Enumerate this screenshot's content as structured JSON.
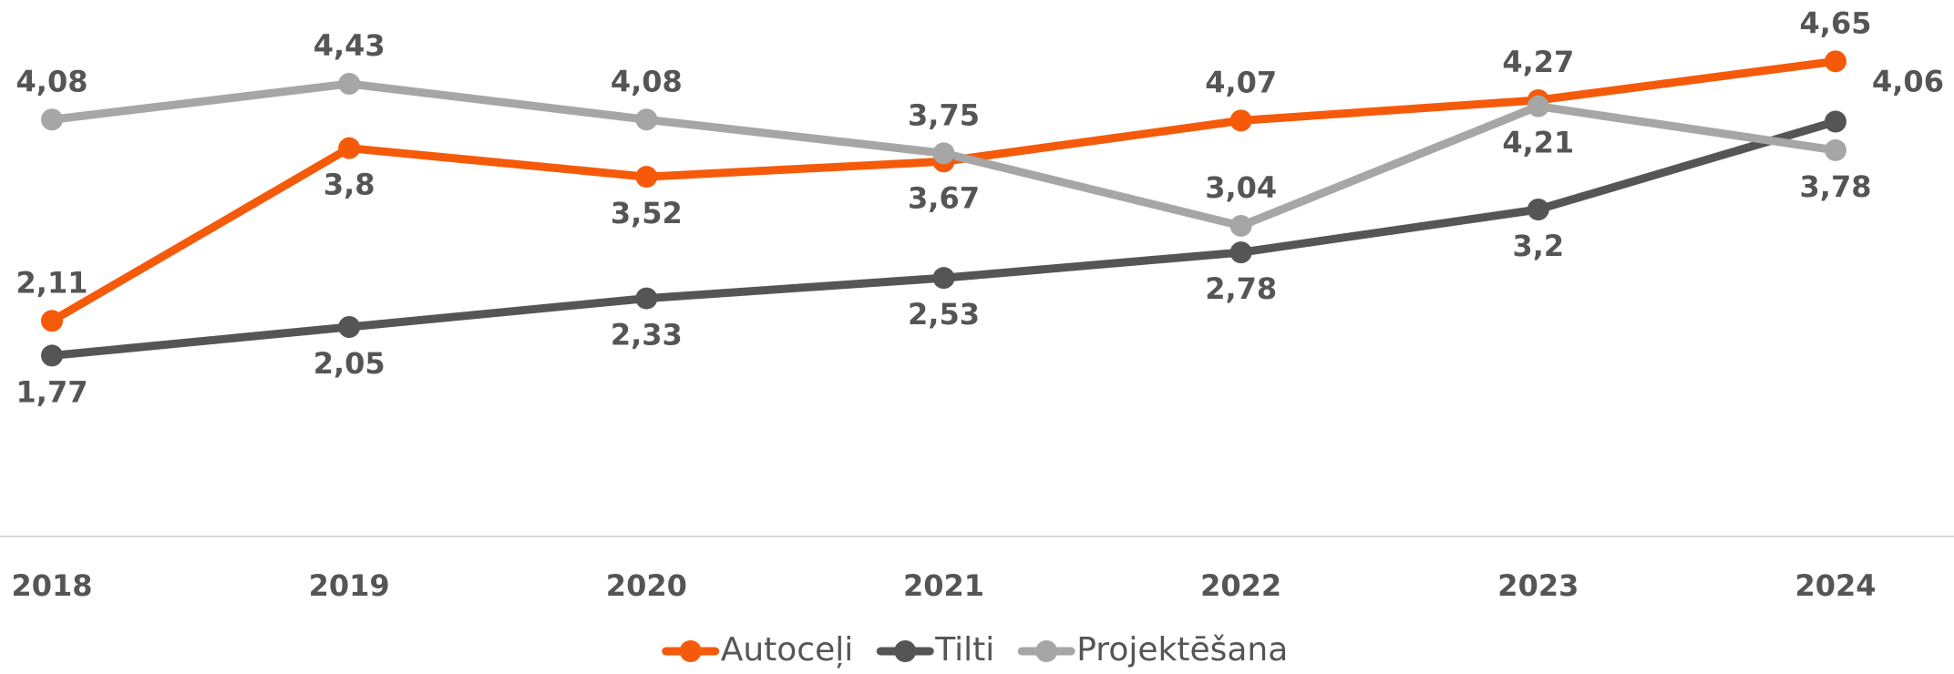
{
  "chart_data": {
    "type": "line",
    "categories": [
      "2018",
      "2019",
      "2020",
      "2021",
      "2022",
      "2023",
      "2024"
    ],
    "ylim": [
      0,
      5.25
    ],
    "grid": false,
    "legend": "bottom",
    "series": [
      {
        "name": "Autoceļi",
        "color": "#f55a0a",
        "values": [
          2.11,
          3.8,
          3.52,
          3.67,
          4.07,
          4.27,
          4.65
        ],
        "value_labels": [
          "2,11",
          "3,8",
          "3,52",
          "3,67",
          "4,07",
          "4,27",
          "4,65"
        ]
      },
      {
        "name": "Tilti",
        "color": "#555555",
        "values": [
          1.77,
          2.05,
          2.33,
          2.53,
          2.78,
          3.2,
          4.06
        ],
        "value_labels": [
          "1,77",
          "2,05",
          "2,33",
          "2,53",
          "2,78",
          "3,2",
          "4,06"
        ]
      },
      {
        "name": "Projektēšana",
        "color": "#a6a6a6",
        "values": [
          4.08,
          4.43,
          4.08,
          3.75,
          3.04,
          4.21,
          3.78
        ],
        "value_labels": [
          "4,08",
          "4,43",
          "4,08",
          "3,75",
          "3,04",
          "4,21",
          "3,78"
        ]
      }
    ]
  }
}
